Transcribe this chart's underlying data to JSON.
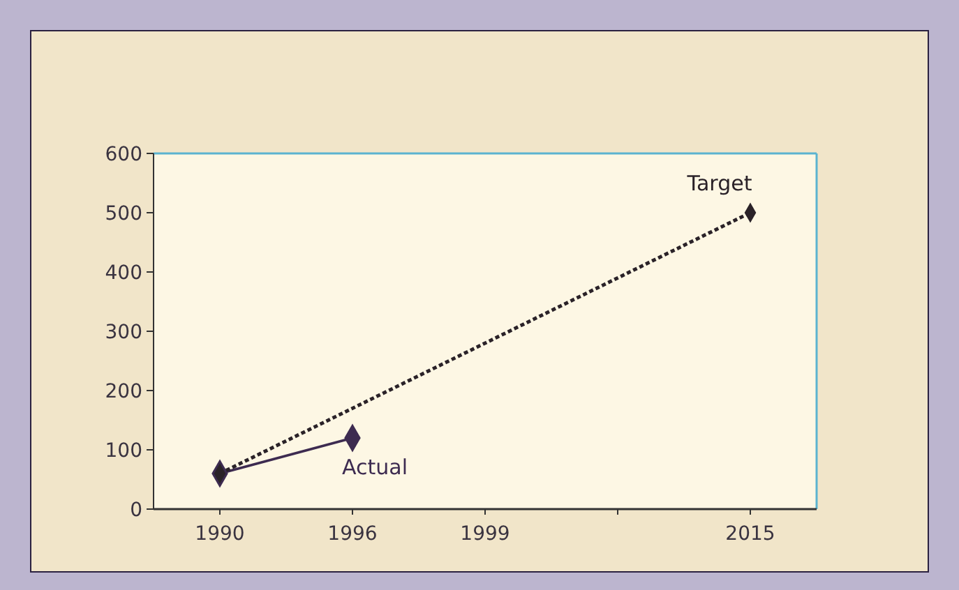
{
  "chart_data": {
    "type": "line",
    "categories": [
      "1990",
      "1996",
      "1999",
      null,
      "2015"
    ],
    "series": [
      {
        "name": "Actual",
        "color": "#3d2b50",
        "values": [
          60,
          120,
          null,
          null,
          null
        ],
        "line_style": "solid"
      },
      {
        "name": "Target",
        "color": "#2a2228",
        "values": [
          60,
          null,
          null,
          null,
          500
        ],
        "line_style": "dotted"
      }
    ],
    "ylim": [
      0,
      600
    ],
    "yticks": [
      0,
      100,
      200,
      300,
      400,
      500,
      600
    ],
    "grid": false,
    "marker": "diamond"
  }
}
